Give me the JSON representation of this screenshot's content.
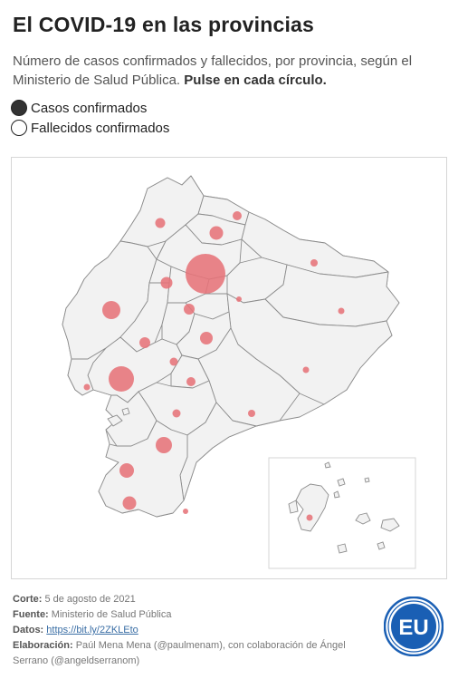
{
  "header": {
    "title": "El COVID-19 en las provincias",
    "subtitle": "Número de casos confirmados y fallecidos, por provincia, según el Ministerio de Salud Pública.",
    "subtitle_cta": "Pulse en cada círculo."
  },
  "legend": {
    "items": [
      {
        "label": "Casos confirmados",
        "selected": true
      },
      {
        "label": "Fallecidos confirmados",
        "selected": false
      }
    ]
  },
  "map": {
    "bubble_color": "#e67379",
    "province_fill": "#f2f2f2",
    "province_stroke": "#8c8c8c"
  },
  "credits": {
    "corte_label": "Corte:",
    "corte_value": "5 de agosto de 2021",
    "fuente_label": "Fuente:",
    "fuente_value": "Ministerio de Salud Pública",
    "datos_label": "Datos:",
    "datos_value": "https://bit.ly/2ZKLEto",
    "elaboracion_label": "Elaboración:",
    "elaboracion_value": "Paúl Mena Mena (@paulmenam), con colaboración de Ángel Serrano (@angeldserranom)"
  },
  "logo": {
    "text": "EU",
    "color": "#1a5fb4"
  }
}
